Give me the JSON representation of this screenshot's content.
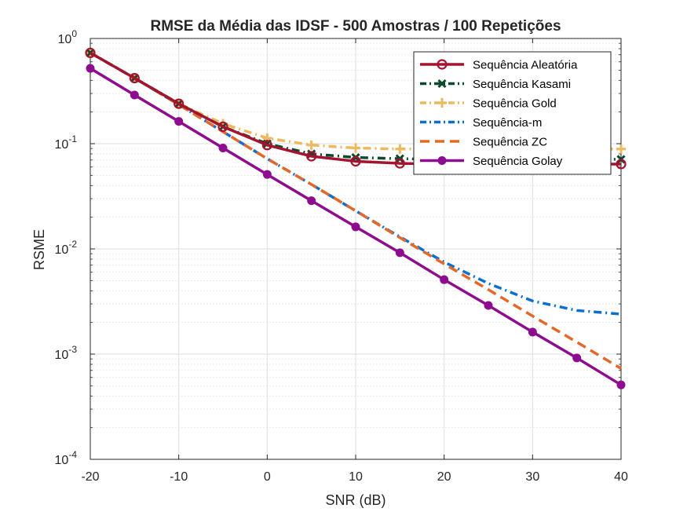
{
  "chart_data": {
    "type": "line",
    "title": "RMSE da Média das IDSF - 500 Amostras / 100 Repetições",
    "xlabel": "SNR (dB)",
    "ylabel": "RSME",
    "xlim": [
      -20,
      40
    ],
    "ylim": [
      0.0001,
      1
    ],
    "yscale": "log",
    "grid": true,
    "legend_position": "top-right",
    "x_ticks": [
      "-20",
      "-10",
      "0",
      "10",
      "20",
      "30",
      "40"
    ],
    "y_ticks": [
      {
        "base": "10",
        "exp": "0"
      },
      {
        "base": "10",
        "exp": "-1"
      },
      {
        "base": "10",
        "exp": "-2"
      },
      {
        "base": "10",
        "exp": "-3"
      },
      {
        "base": "10",
        "exp": "-4"
      }
    ],
    "x": [
      -20,
      -15,
      -10,
      -5,
      0,
      5,
      10,
      15,
      20,
      25,
      30,
      35,
      40
    ],
    "series": [
      {
        "name": "Sequência Aleatória",
        "color": "#a2142f",
        "style": "solid",
        "marker": "circle-open",
        "values": [
          0.73,
          0.42,
          0.24,
          0.145,
          0.097,
          0.076,
          0.068,
          0.065,
          0.064,
          0.064,
          0.064,
          0.064,
          0.064
        ]
      },
      {
        "name": "Sequência Kasami",
        "color": "#0b4a2a",
        "style": "dash-dot",
        "marker": "x",
        "values": [
          0.73,
          0.42,
          0.24,
          0.145,
          0.1,
          0.08,
          0.074,
          0.072,
          0.071,
          0.071,
          0.071,
          0.071,
          0.071
        ]
      },
      {
        "name": "Sequência Gold",
        "color": "#edb95e",
        "style": "dash-dot",
        "marker": "plus",
        "values": [
          0.73,
          0.42,
          0.24,
          0.155,
          0.113,
          0.097,
          0.091,
          0.089,
          0.089,
          0.089,
          0.089,
          0.089,
          0.089
        ]
      },
      {
        "name": "Sequência-m",
        "color": "#0b6fd1",
        "style": "dash-dot",
        "marker": "none",
        "values": [
          0.73,
          0.42,
          0.235,
          0.13,
          0.072,
          0.041,
          0.023,
          0.013,
          0.0075,
          0.0047,
          0.0032,
          0.0026,
          0.0024
        ]
      },
      {
        "name": "Sequência ZC",
        "color": "#e3682a",
        "style": "dashed",
        "marker": "none",
        "values": [
          0.73,
          0.42,
          0.235,
          0.13,
          0.072,
          0.041,
          0.023,
          0.0128,
          0.0072,
          0.0041,
          0.0023,
          0.0013,
          0.00073
        ]
      },
      {
        "name": "Sequência Golay",
        "color": "#8e0c8e",
        "style": "solid",
        "marker": "circle-filled",
        "values": [
          0.52,
          0.29,
          0.163,
          0.091,
          0.051,
          0.0287,
          0.0162,
          0.0092,
          0.0051,
          0.0029,
          0.00162,
          0.00092,
          0.00051
        ]
      }
    ]
  }
}
